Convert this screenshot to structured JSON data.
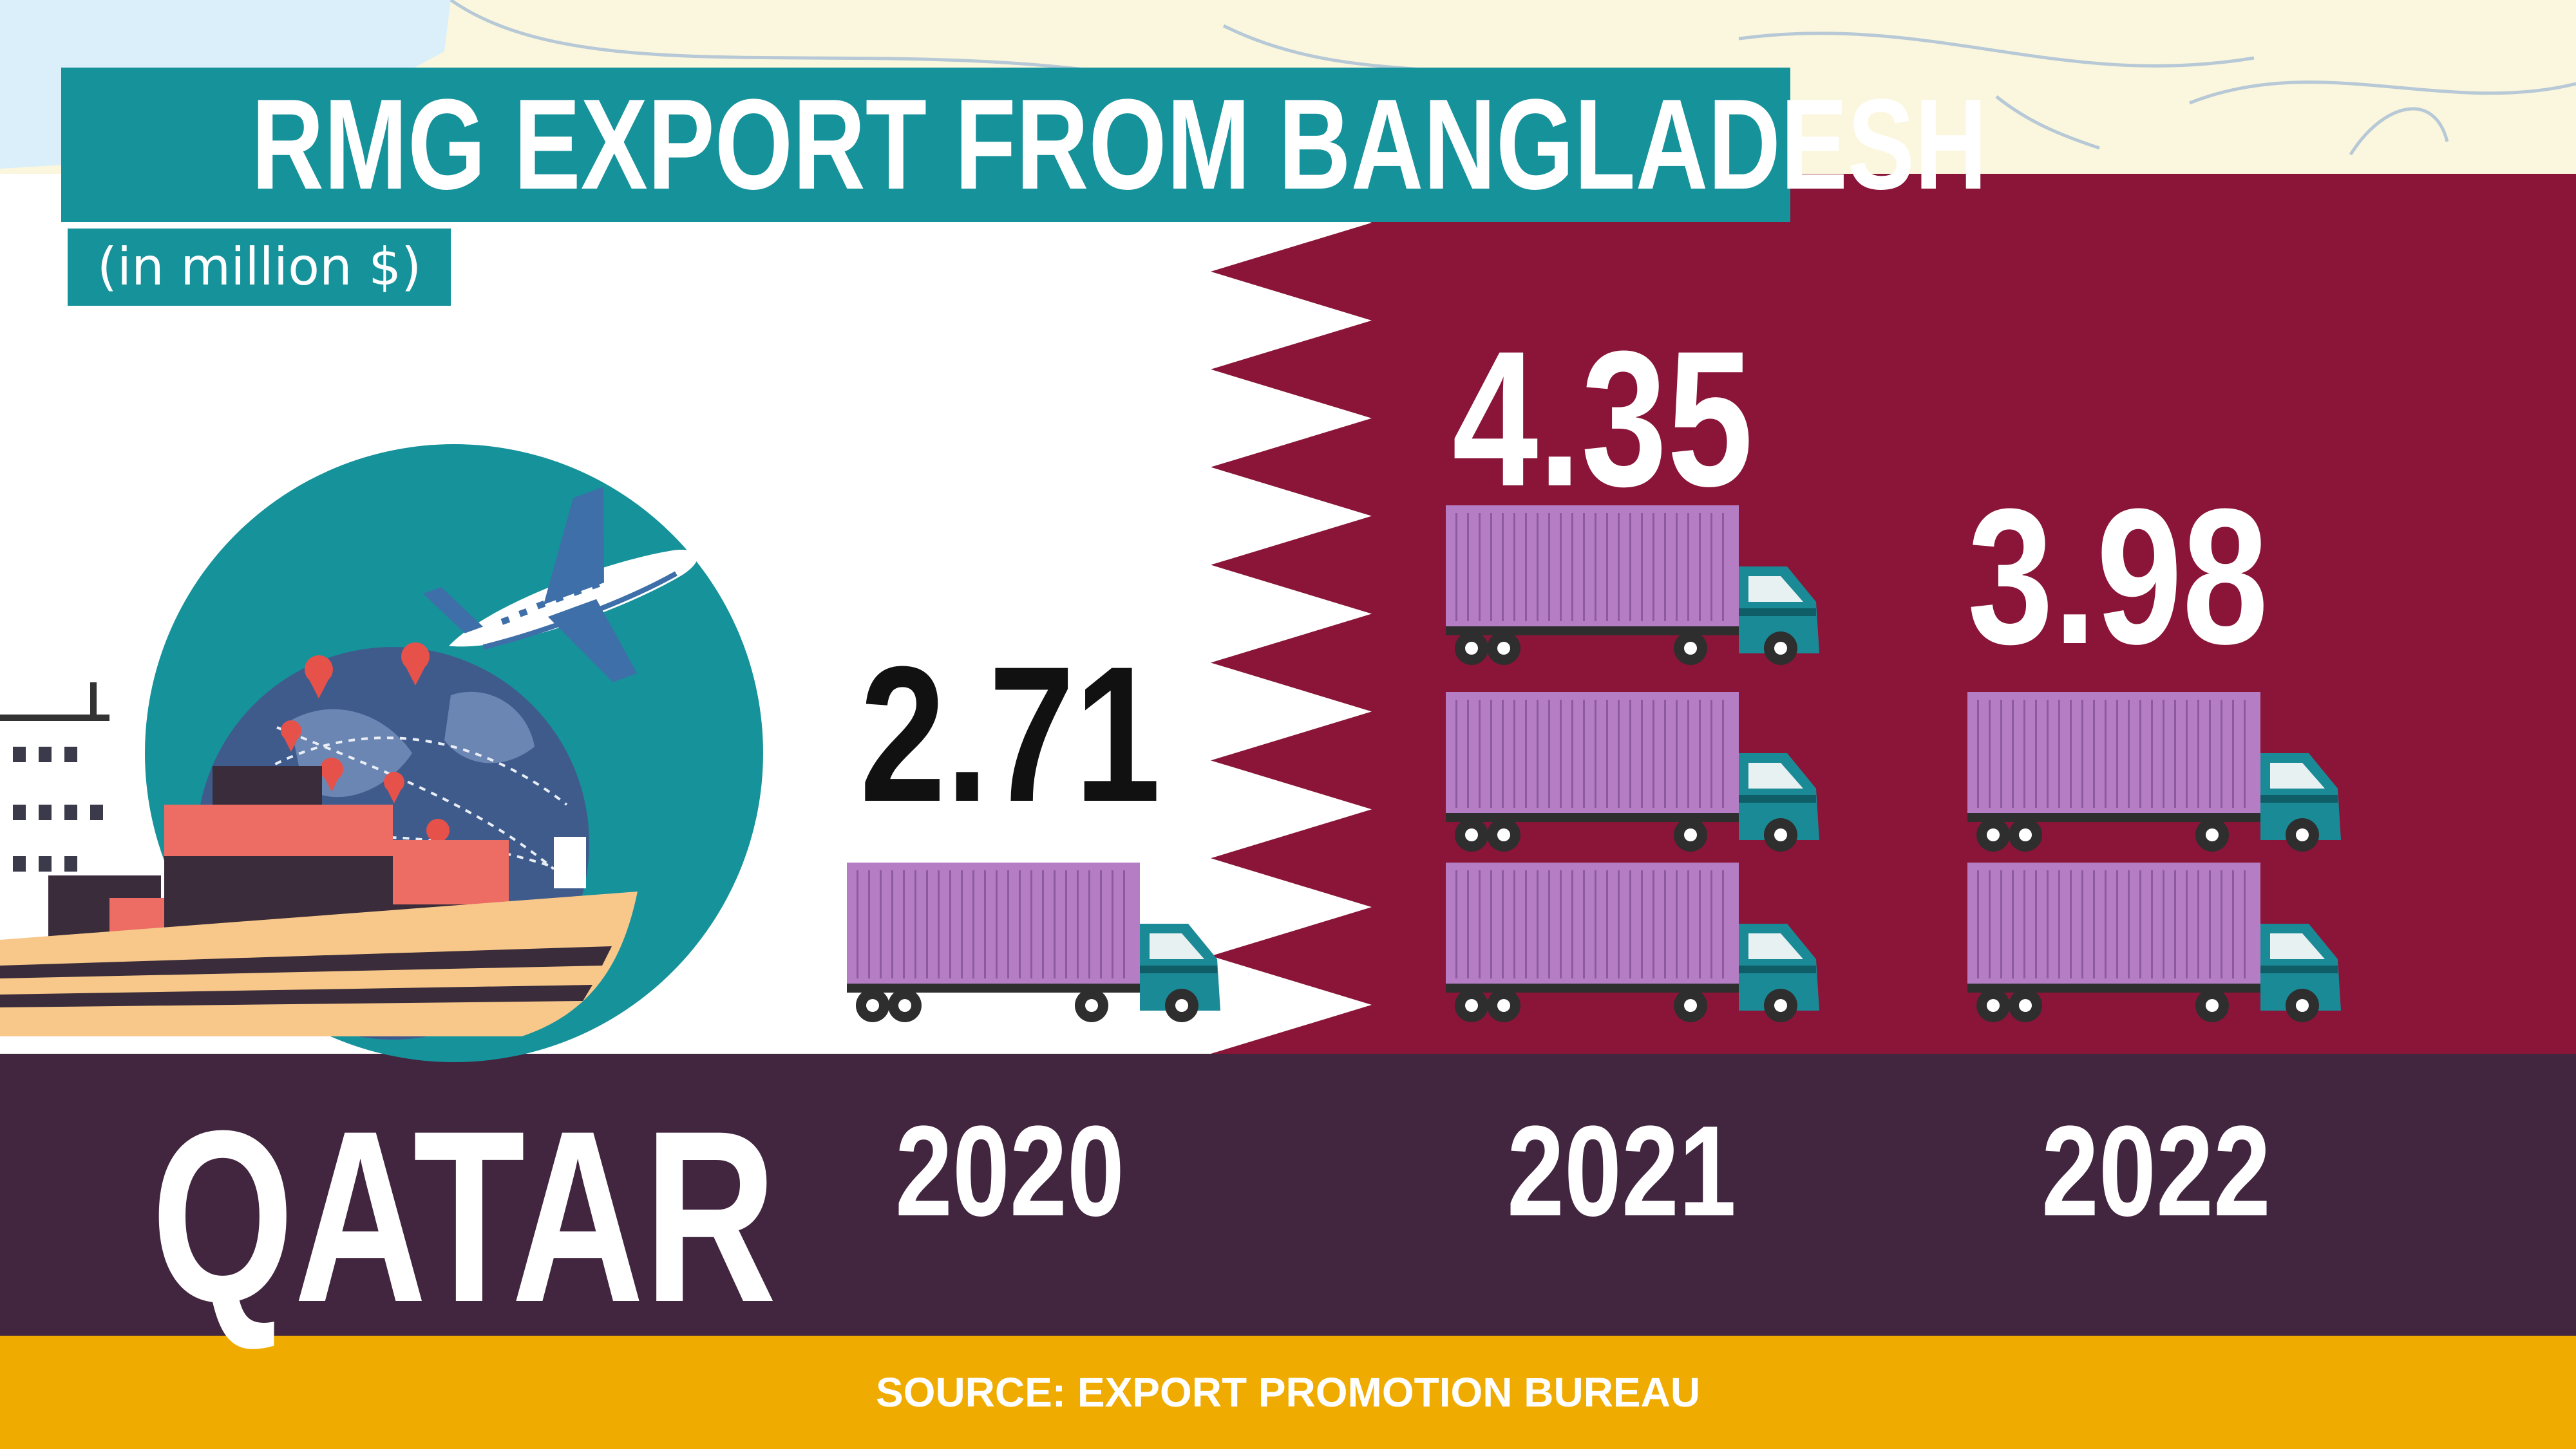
{
  "title": "RMG EXPORT FROM BANGLADESH",
  "subtitle": "(in million $)",
  "country": "QATAR",
  "source": "SOURCE: EXPORT PROMOTION BUREAU",
  "colors": {
    "teal": "#16929b",
    "maroon": "#8a1538",
    "band": "#42253f",
    "gold": "#efab00",
    "truck_cargo": "#b57ec4",
    "truck_cab": "#1b8a97"
  },
  "chart_data": {
    "type": "bar",
    "unit": "in million $",
    "categories": [
      "2020",
      "2021",
      "2022"
    ],
    "values": [
      2.71,
      4.35,
      3.98
    ],
    "value_labels": [
      "2.71",
      "4.35",
      "3.98"
    ],
    "truck_icons": [
      1,
      3,
      2
    ]
  }
}
